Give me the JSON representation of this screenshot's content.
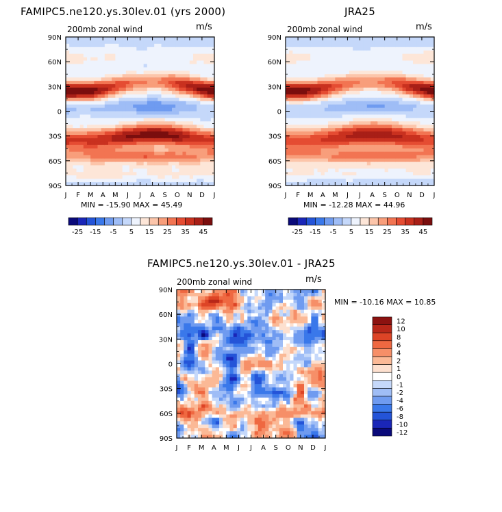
{
  "chart_data": [
    {
      "id": "model",
      "type": "heatmap",
      "title": "FAMIPC5.ne120.ys.30lev.01 (yrs 2000)",
      "left_label": "200mb zonal wind",
      "right_label": "m/s",
      "x_tick_labels": [
        "J",
        "F",
        "M",
        "A",
        "M",
        "J",
        "J",
        "A",
        "S",
        "O",
        "N",
        "D",
        "J"
      ],
      "y_tick_labels": [
        "90N",
        "60N",
        "30N",
        "0",
        "30S",
        "60S",
        "90S"
      ],
      "ylim": [
        -90,
        90
      ],
      "stats_text": "MIN = -15.90 MAX =  45.49",
      "min": -15.9,
      "max": 45.49,
      "field": {
        "jet_north": {
          "lat": 30,
          "strength": 34,
          "seasonal_amp": 14,
          "seasonal_phase_month": 0.5,
          "width": 11
        },
        "jet_south": {
          "lat": -32,
          "strength": 36,
          "seasonal_amp": 6,
          "seasonal_phase_month": 7.0,
          "width": 13
        },
        "tropical_easterly": {
          "lat": 5,
          "strength": -14,
          "peak_month": 7.0,
          "width": 9
        },
        "polar_north": 8,
        "polar_south": 6,
        "noise": 1.0
      },
      "colorbar": {
        "orientation": "horizontal",
        "labels": [
          "-25",
          "-15",
          "-5",
          "5",
          "15",
          "25",
          "35",
          "45"
        ]
      }
    },
    {
      "id": "obs",
      "type": "heatmap",
      "title": "JRA25",
      "left_label": "200mb zonal wind",
      "right_label": "m/s",
      "x_tick_labels": [
        "J",
        "F",
        "M",
        "A",
        "M",
        "J",
        "J",
        "A",
        "S",
        "O",
        "N",
        "D",
        "J"
      ],
      "y_tick_labels": [
        "90N",
        "60N",
        "30N",
        "0",
        "30S",
        "60S",
        "90S"
      ],
      "ylim": [
        -90,
        90
      ],
      "stats_text": "MIN = -12.28 MAX =  44.96",
      "min": -12.28,
      "max": 44.96,
      "field": {
        "jet_north": {
          "lat": 30,
          "strength": 32,
          "seasonal_amp": 13,
          "seasonal_phase_month": 0.5,
          "width": 11
        },
        "jet_south": {
          "lat": -32,
          "strength": 33,
          "seasonal_amp": 6,
          "seasonal_phase_month": 7.0,
          "width": 14
        },
        "tropical_easterly": {
          "lat": 5,
          "strength": -11,
          "peak_month": 7.0,
          "width": 9
        },
        "polar_north": 7,
        "polar_south": 5,
        "noise": 0.3
      },
      "colorbar": {
        "orientation": "horizontal",
        "labels": [
          "-25",
          "-15",
          "-5",
          "5",
          "15",
          "25",
          "35",
          "45"
        ]
      }
    },
    {
      "id": "diff",
      "type": "heatmap",
      "title": "FAMIPC5.ne120.ys.30lev.01 - JRA25",
      "left_label": "200mb zonal wind",
      "right_label": "m/s",
      "x_tick_labels": [
        "J",
        "F",
        "M",
        "A",
        "M",
        "J",
        "J",
        "A",
        "S",
        "O",
        "N",
        "D",
        "J"
      ],
      "y_tick_labels": [
        "90N",
        "60N",
        "30N",
        "0",
        "30S",
        "60S",
        "90S"
      ],
      "ylim": [
        -90,
        90
      ],
      "stats_text": "MIN = -10.16 MAX =  10.85",
      "min": -10.16,
      "max": 10.85,
      "colorbar": {
        "orientation": "vertical",
        "labels": [
          "12",
          "10",
          "8",
          "6",
          "4",
          "2",
          "1",
          "0",
          "-1",
          "-2",
          "-4",
          "-6",
          "-8",
          "-10",
          "-12"
        ]
      }
    }
  ],
  "colors": {
    "full_palette": [
      "#0a0a7a",
      "#1a26b8",
      "#2454d8",
      "#3a78ea",
      "#6f9bf0",
      "#9fbdf6",
      "#c5d8fa",
      "#eef3fd",
      "#fde6d8",
      "#fcc5aa",
      "#f89e7b",
      "#f27452",
      "#e54c32",
      "#c9311f",
      "#a81f17",
      "#7a0e0e"
    ],
    "diff_palette": [
      "#0a0a7a",
      "#1a26b8",
      "#2454d8",
      "#3a78ea",
      "#6f9bf0",
      "#9fbdf6",
      "#c5d8fa",
      "#ffffff",
      "#fde0cf",
      "#fbb996",
      "#f68f68",
      "#ef6841",
      "#dd4426",
      "#b82719",
      "#8c1210"
    ]
  }
}
